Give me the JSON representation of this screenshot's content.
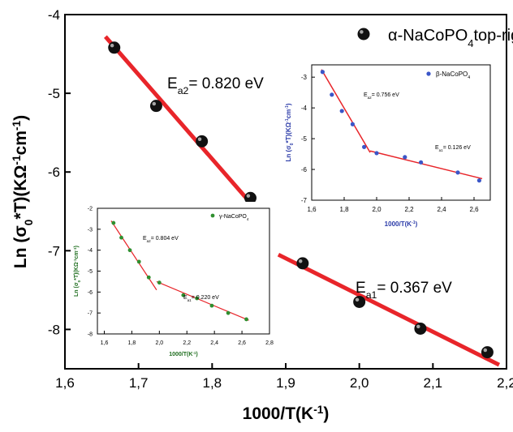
{
  "chart_data": [
    {
      "type": "scatter",
      "xlabel_parts": {
        "pre": "1000/T(K",
        "sup": "-1",
        "post": ")"
      },
      "ylabel_parts": {
        "pre": "Ln (σ",
        "sub": "0",
        "mid": "*T)(KΩ",
        "sup1": "-1",
        "mid2": "cm",
        "sup2": "-1",
        "post": ")"
      },
      "xlim": [
        1.6,
        2.2
      ],
      "ylim": [
        -8.5,
        -4
      ],
      "xticks": [
        "1,6",
        "1,7",
        "1,8",
        "1,9",
        "2,0",
        "2,1",
        "2,2"
      ],
      "xtick_values": [
        1.6,
        1.7,
        1.8,
        1.9,
        2.0,
        2.1,
        2.2
      ],
      "yticks": [
        "-4",
        "-5",
        "-6",
        "-7",
        "-8"
      ],
      "ytick_values": [
        -4,
        -5,
        -6,
        -7,
        -8
      ],
      "legend": {
        "pre": "α-NaCoPO",
        "sub": "4",
        "placement": "top-right"
      },
      "series": [
        {
          "x": [
            1.667,
            1.724,
            1.786,
            1.852,
            1.923,
            2.0,
            2.083,
            2.174
          ],
          "y": [
            -4.42,
            -5.16,
            -5.61,
            -6.33,
            -7.16,
            -7.65,
            -7.99,
            -8.29
          ]
        }
      ],
      "fits": [
        {
          "x": [
            1.655,
            1.863
          ],
          "y": [
            -4.28,
            -6.51
          ]
        },
        {
          "x": [
            1.89,
            2.19
          ],
          "y": [
            -7.05,
            -8.45
          ]
        }
      ],
      "annotations": [
        {
          "pre": "E",
          "sub": "a2",
          "post": "= 0.820 eV"
        },
        {
          "pre": "E",
          "sub": "a1",
          "post": "= 0.367 eV"
        }
      ],
      "colors": {
        "fit": "#e8252a",
        "marker": "#111111"
      }
    },
    {
      "type": "scatter",
      "inset": "top-right",
      "xlabel_parts": {
        "pre": "1000/T(K",
        "sup": "-1",
        "post": ")"
      },
      "ylabel_parts": {
        "pre": "Ln (σ",
        "sub": "0",
        "mid": "*T)(KΩ",
        "sup1": "-1",
        "mid2": "cm",
        "sup2": "-1",
        "post": ")"
      },
      "xlim": [
        1.6,
        2.7
      ],
      "ylim": [
        -7,
        -2.6
      ],
      "xticks": [
        "1,6",
        "1,8",
        "2,0",
        "2,2",
        "2,4",
        "2,6"
      ],
      "xtick_values": [
        1.6,
        1.8,
        2.0,
        2.2,
        2.4,
        2.6
      ],
      "yticks": [
        "-3",
        "-4",
        "-5",
        "-6",
        "-7"
      ],
      "ytick_values": [
        -3,
        -4,
        -5,
        -6,
        -7
      ],
      "legend": {
        "pre": "β-NaCoPO",
        "sub": "4"
      },
      "series": [
        {
          "x": [
            1.667,
            1.724,
            1.786,
            1.852,
            1.923,
            2.0,
            2.174,
            2.273,
            2.5,
            2.632
          ],
          "y": [
            -2.83,
            -3.57,
            -4.1,
            -4.53,
            -5.27,
            -5.47,
            -5.6,
            -5.77,
            -6.1,
            -6.36
          ]
        }
      ],
      "fits": [
        {
          "x": [
            1.66,
            1.96
          ],
          "y": [
            -2.75,
            -5.45
          ]
        },
        {
          "x": [
            1.96,
            2.65
          ],
          "y": [
            -5.4,
            -6.3
          ]
        }
      ],
      "annotations": [
        {
          "pre": "E",
          "sub": "a2",
          "post": "= 0.756 eV"
        },
        {
          "pre": "E",
          "sub": "a1",
          "post": "= 0.126 eV"
        }
      ],
      "colors": {
        "fit": "#e8252a",
        "marker": "#3b56c8",
        "label": "#2a3aa8"
      }
    },
    {
      "type": "scatter",
      "inset": "bottom-left",
      "xlabel_parts": {
        "pre": "1000/T(K",
        "sup": "-1",
        "post": ")"
      },
      "ylabel_parts": {
        "pre": "Ln (σ",
        "sub": "0",
        "mid": "*T)(KΩ",
        "sup1": "-1",
        "mid2": "cm",
        "sup2": "-1",
        "post": ")"
      },
      "xlim": [
        1.55,
        2.8
      ],
      "ylim": [
        -8,
        -2
      ],
      "xticks": [
        "1,6",
        "1,8",
        "2,0",
        "2,2",
        "2,4",
        "2,6",
        "2,8"
      ],
      "xtick_values": [
        1.6,
        1.8,
        2.0,
        2.2,
        2.4,
        2.6,
        2.8
      ],
      "yticks": [
        "-2",
        "-3",
        "-4",
        "-5",
        "-6",
        "-7",
        "-8"
      ],
      "ytick_values": [
        -2,
        -3,
        -4,
        -5,
        -6,
        -7,
        -8
      ],
      "legend": {
        "pre": "γ-NaCoPO",
        "sub": "4"
      },
      "series": [
        {
          "x": [
            1.667,
            1.724,
            1.786,
            1.852,
            1.923,
            2.0,
            2.174,
            2.273,
            2.381,
            2.5,
            2.632
          ],
          "y": [
            -2.7,
            -3.4,
            -4.0,
            -4.55,
            -5.3,
            -5.55,
            -6.15,
            -6.3,
            -6.65,
            -7.0,
            -7.3
          ]
        }
      ],
      "fits": [
        {
          "x": [
            1.65,
            1.98
          ],
          "y": [
            -2.6,
            -5.9
          ]
        },
        {
          "x": [
            1.98,
            2.65
          ],
          "y": [
            -5.5,
            -7.35
          ]
        }
      ],
      "annotations": [
        {
          "pre": "E",
          "sub": "a2",
          "post": "= 0.804 eV"
        },
        {
          "pre": "E",
          "sub": "a1",
          "post": "= 0.220 eV"
        }
      ],
      "colors": {
        "fit": "#e8252a",
        "marker": "#2f8f2f",
        "label": "#1f6e1f"
      }
    }
  ]
}
